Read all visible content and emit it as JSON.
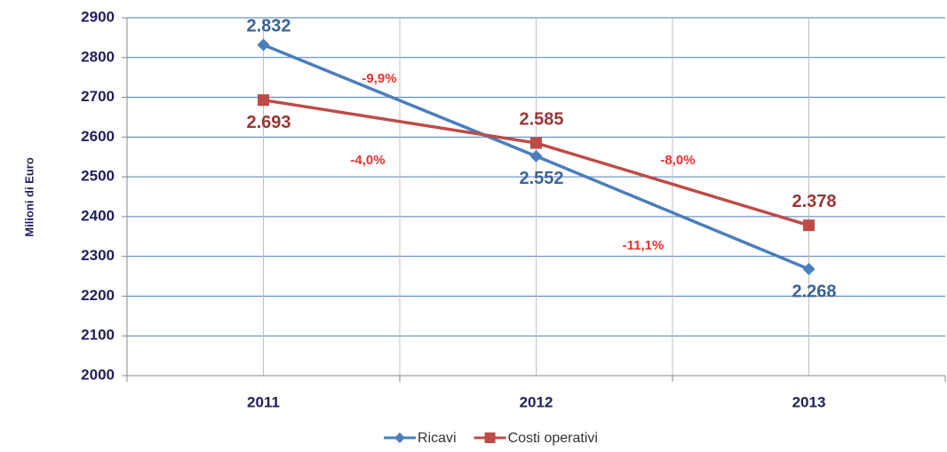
{
  "chart_data": {
    "type": "line",
    "y_label": "Milioni di  Euro",
    "categories": [
      "2011",
      "2012",
      "2013"
    ],
    "series": [
      {
        "name": "Ricavi",
        "color": "#4a7ebb",
        "values": [
          2832,
          2552,
          2268
        ],
        "value_labels": [
          "2.832",
          "2.552",
          "2.268"
        ]
      },
      {
        "name": "Costi operativi",
        "color": "#be4b48",
        "values": [
          2693,
          2585,
          2378
        ],
        "value_labels": [
          "2.693",
          "2.585",
          "2.378"
        ]
      }
    ],
    "annotations": [
      "-9,9%",
      "-4,0%",
      "-8,0%",
      "-11,1%"
    ],
    "ylim": [
      2000,
      2900
    ],
    "yticks": [
      2000,
      2100,
      2200,
      2300,
      2400,
      2500,
      2600,
      2700,
      2800,
      2900
    ],
    "grid": true
  }
}
